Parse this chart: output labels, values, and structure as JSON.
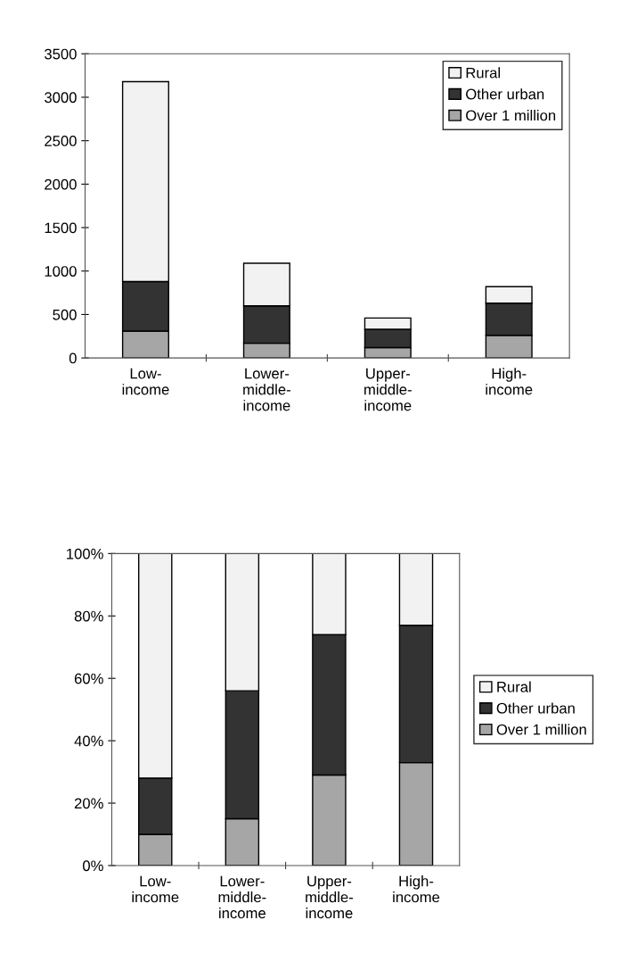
{
  "chart_data": [
    {
      "type": "bar",
      "stacked": true,
      "categories": [
        "Low-\nincome",
        "Lower-\nmiddle-\nincome",
        "Upper-\nmiddle-\nincome",
        "High-\nincome"
      ],
      "series": [
        {
          "name": "Over 1 million",
          "color": "#a6a6a6",
          "values": [
            310,
            170,
            120,
            260
          ]
        },
        {
          "name": "Other urban",
          "color": "#333333",
          "values": [
            570,
            430,
            210,
            370
          ]
        },
        {
          "name": "Rural",
          "color": "#f2f2f2",
          "values": [
            2300,
            490,
            130,
            190
          ]
        }
      ],
      "ylim": [
        0,
        3500
      ],
      "yticks": [
        0,
        500,
        1000,
        1500,
        2000,
        2500,
        3000,
        3500
      ],
      "grid": false,
      "legend": "top right"
    },
    {
      "type": "bar",
      "stacked": true,
      "categories": [
        "Low-\nincome",
        "Lower-\nmiddle-\nincome",
        "Upper-\nmiddle-\nincome",
        "High-\nincome"
      ],
      "series": [
        {
          "name": "Over 1 million",
          "color": "#a6a6a6",
          "values": [
            10,
            15,
            29,
            33
          ]
        },
        {
          "name": "Other urban",
          "color": "#333333",
          "values": [
            18,
            41,
            45,
            44
          ]
        },
        {
          "name": "Rural",
          "color": "#f2f2f2",
          "values": [
            72,
            44,
            26,
            23
          ]
        }
      ],
      "ylim": [
        0,
        100
      ],
      "yticks": [
        {
          "value": 0,
          "label": "0%"
        },
        {
          "value": 20,
          "label": "20%"
        },
        {
          "value": 40,
          "label": "40%"
        },
        {
          "value": 60,
          "label": "60%"
        },
        {
          "value": 80,
          "label": "80%"
        },
        {
          "value": 100,
          "label": "100%"
        }
      ],
      "grid": false,
      "legend": "right"
    }
  ]
}
